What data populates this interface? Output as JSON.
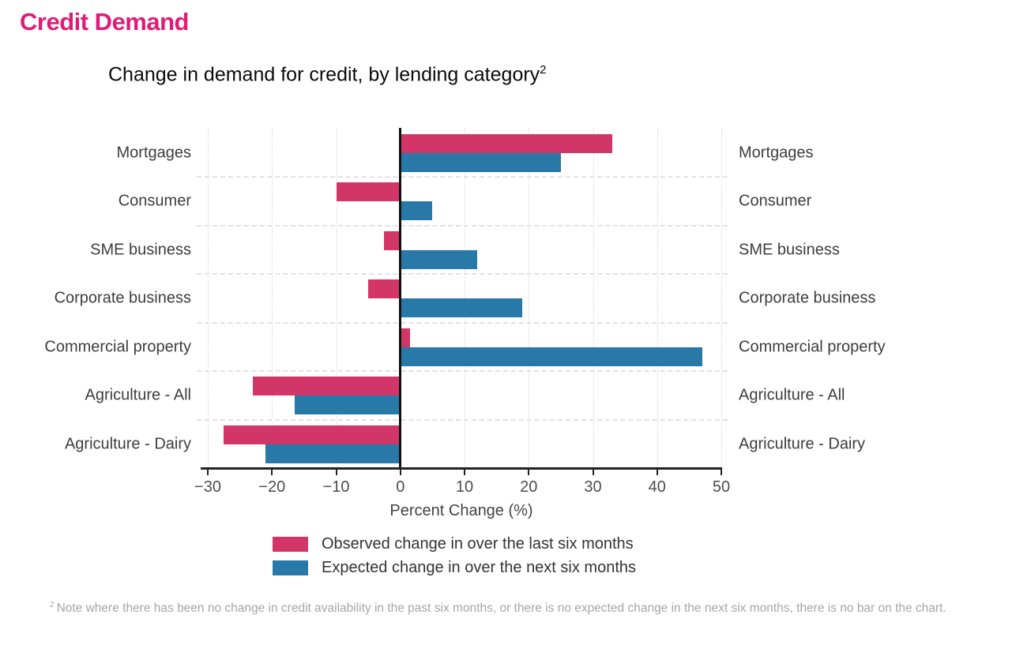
{
  "header": {
    "title": "Credit Demand",
    "title_color": "#e01b76"
  },
  "subtitle": {
    "text": "Change in demand for credit, by lending category",
    "superscript": "2"
  },
  "chart_data": {
    "type": "bar",
    "orientation": "horizontal",
    "title": "Change in demand for credit, by lending category",
    "categories": [
      "Mortgages",
      "Consumer",
      "SME business",
      "Corporate business",
      "Commercial property",
      "Agriculture - All",
      "Agriculture - Dairy"
    ],
    "series": [
      {
        "name": "Observed change in over the last six months",
        "color": "#d23668",
        "values": [
          33,
          -10,
          -2.5,
          -5,
          1.5,
          -23,
          -27.5
        ]
      },
      {
        "name": "Expected change in over the next six months",
        "color": "#2878a8",
        "values": [
          25,
          5,
          12,
          19,
          47,
          -16.5,
          -21
        ]
      }
    ],
    "xlabel": "Percent Change (%)",
    "xlim": [
      -30,
      50
    ],
    "xticks": [
      -30,
      -20,
      -10,
      0,
      10,
      20,
      30,
      40,
      50
    ],
    "zero_line": true,
    "grid": "vertical dotted gridlines at ticks, dashed horizontal category separators",
    "legend_position": "bottom",
    "category_labels": "both sides"
  },
  "footnote": {
    "superscript": "2",
    "text": "Note where there has been no change in credit availability in the past six months, or there is no expected change in the next six months, there is no bar on the chart."
  }
}
